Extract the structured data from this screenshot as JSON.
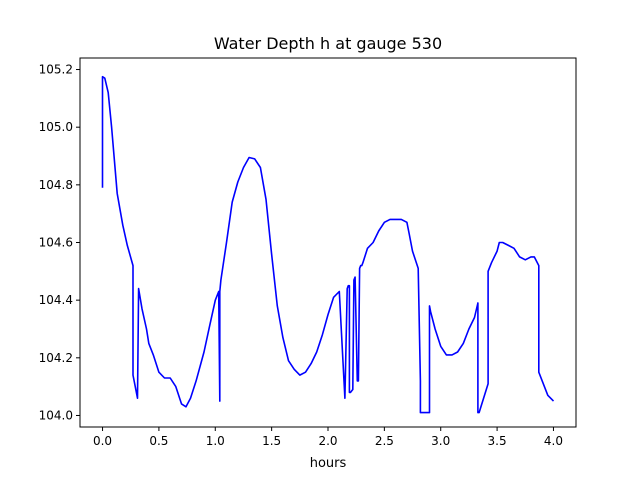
{
  "chart_data": {
    "type": "line",
    "title": "Water Depth h at gauge 530",
    "xlabel": "hours",
    "ylabel": "",
    "xlim": [
      -0.2,
      4.2
    ],
    "ylim": [
      103.96,
      105.24
    ],
    "grid": false,
    "x_ticks": [
      0.0,
      0.5,
      1.0,
      1.5,
      2.0,
      2.5,
      3.0,
      3.5,
      4.0
    ],
    "x_tick_labels": [
      "0.0",
      "0.5",
      "1.0",
      "1.5",
      "2.0",
      "2.5",
      "3.0",
      "3.5",
      "4.0"
    ],
    "y_ticks": [
      104.0,
      104.2,
      104.4,
      104.6,
      104.8,
      105.0,
      105.2
    ],
    "y_tick_labels": [
      "104.0",
      "104.2",
      "104.4",
      "104.6",
      "104.8",
      "105.0",
      "105.2"
    ],
    "series": [
      {
        "color": "#0000ff",
        "x": [
          0.0,
          0.0,
          0.02,
          0.05,
          0.08,
          0.13,
          0.18,
          0.22,
          0.27,
          0.27,
          0.31,
          0.32,
          0.35,
          0.39,
          0.41,
          0.45,
          0.5,
          0.55,
          0.6,
          0.65,
          0.7,
          0.74,
          0.78,
          0.83,
          0.9,
          0.95,
          1.0,
          1.03,
          1.04,
          1.04,
          1.05,
          1.1,
          1.15,
          1.2,
          1.25,
          1.3,
          1.35,
          1.4,
          1.45,
          1.5,
          1.55,
          1.6,
          1.65,
          1.7,
          1.75,
          1.8,
          1.85,
          1.9,
          1.95,
          2.0,
          2.05,
          2.1,
          2.15,
          2.17,
          2.18,
          2.19,
          2.19,
          2.2,
          2.22,
          2.23,
          2.24,
          2.26,
          2.27,
          2.28,
          2.29,
          2.3,
          2.31,
          2.35,
          2.4,
          2.45,
          2.5,
          2.55,
          2.6,
          2.65,
          2.7,
          2.72,
          2.75,
          2.8,
          2.82,
          2.82,
          2.9,
          2.9,
          2.91,
          2.95,
          3.0,
          3.05,
          3.1,
          3.15,
          3.2,
          3.25,
          3.3,
          3.33,
          3.33,
          3.34,
          3.42,
          3.42,
          3.45,
          3.5,
          3.52,
          3.55,
          3.6,
          3.65,
          3.7,
          3.75,
          3.8,
          3.83,
          3.87,
          3.87,
          3.9,
          3.95,
          4.0
        ],
        "y": [
          104.79,
          105.175,
          105.17,
          105.12,
          105.0,
          104.77,
          104.66,
          104.59,
          104.52,
          104.14,
          104.06,
          104.44,
          104.37,
          104.3,
          104.25,
          104.21,
          104.15,
          104.13,
          104.13,
          104.1,
          104.04,
          104.03,
          104.06,
          104.12,
          104.22,
          104.31,
          104.4,
          104.43,
          104.05,
          104.43,
          104.47,
          104.6,
          104.74,
          104.81,
          104.86,
          104.895,
          104.89,
          104.86,
          104.75,
          104.56,
          104.38,
          104.27,
          104.19,
          104.16,
          104.14,
          104.15,
          104.18,
          104.22,
          104.28,
          104.35,
          104.41,
          104.43,
          104.06,
          104.44,
          104.45,
          104.45,
          104.08,
          104.08,
          104.09,
          104.47,
          104.48,
          104.12,
          104.12,
          104.51,
          104.52,
          104.52,
          104.53,
          104.58,
          104.6,
          104.64,
          104.67,
          104.68,
          104.68,
          104.68,
          104.67,
          104.63,
          104.57,
          104.51,
          104.12,
          104.01,
          104.01,
          104.38,
          104.36,
          104.3,
          104.24,
          104.21,
          104.21,
          104.22,
          104.25,
          104.3,
          104.34,
          104.39,
          104.01,
          104.01,
          104.11,
          104.5,
          104.53,
          104.57,
          104.6,
          104.6,
          104.59,
          104.58,
          104.55,
          104.54,
          104.55,
          104.55,
          104.52,
          104.15,
          104.12,
          104.07,
          104.05
        ]
      }
    ]
  }
}
